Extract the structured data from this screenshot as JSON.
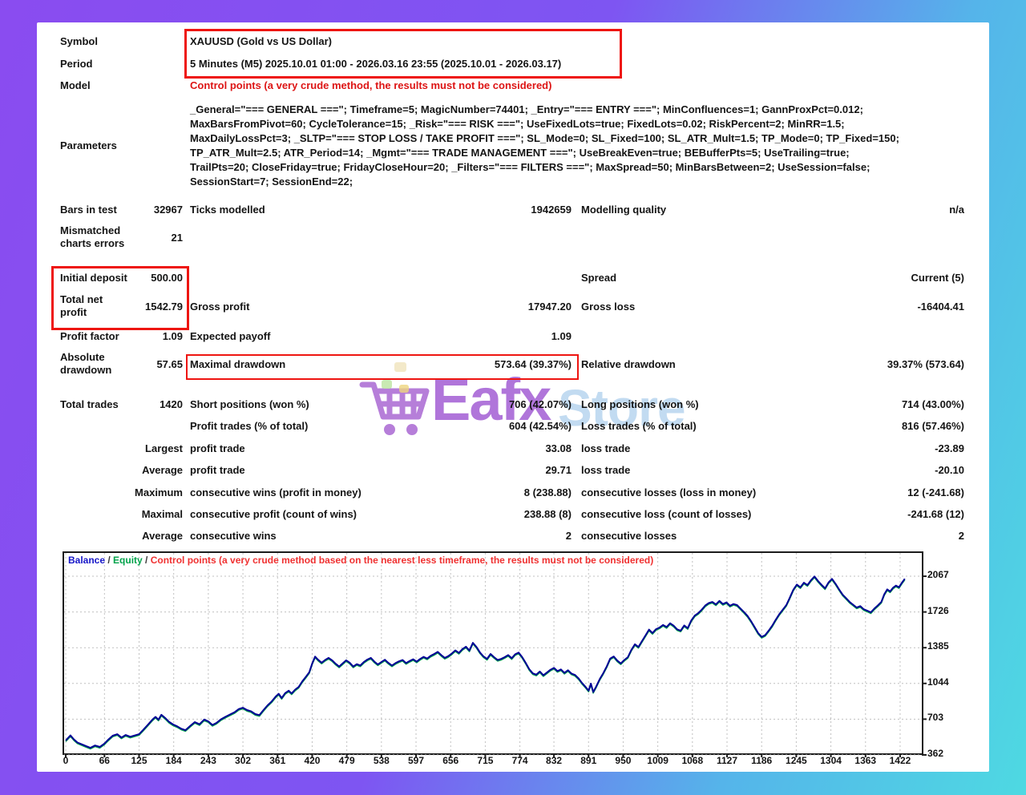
{
  "report": {
    "symbol_label": "Symbol",
    "symbol_value": "XAUUSD (Gold vs US Dollar)",
    "period_label": "Period",
    "period_value": "5 Minutes (M5) 2025.10.01 01:00 - 2026.03.16 23:55 (2025.10.01 - 2026.03.17)",
    "model_label": "Model",
    "model_value": "Control points (a very crude method, the results must not be considered)",
    "parameters_label": "Parameters",
    "parameters_lines": [
      "_General=\"=== GENERAL ===\"; Timeframe=5; MagicNumber=74401; _Entry=\"=== ENTRY ===\"; MinConfluences=1; GannProxPct=0.012;",
      "MaxBarsFromPivot=60; CycleTolerance=15; _Risk=\"=== RISK ===\"; UseFixedLots=true; FixedLots=0.02; RiskPercent=2; MinRR=1.5;",
      "MaxDailyLossPct=3; _SLTP=\"=== STOP LOSS / TAKE PROFIT ===\"; SL_Mode=0; SL_Fixed=100; SL_ATR_Mult=1.5; TP_Mode=0; TP_Fixed=150;",
      "TP_ATR_Mult=2.5; ATR_Period=14; _Mgmt=\"=== TRADE MANAGEMENT ===\"; UseBreakEven=true; BEBufferPts=5; UseTrailing=true;",
      "TrailPts=20; CloseFriday=true; FridayCloseHour=20; _Filters=\"=== FILTERS ===\"; MaxSpread=50; MinBarsBetween=2; UseSession=false;",
      "SessionStart=7; SessionEnd=22;"
    ],
    "bars_in_test_label": "Bars in test",
    "bars_in_test_value": "32967",
    "ticks_modelled_label": "Ticks modelled",
    "ticks_modelled_value": "1942659",
    "modelling_quality_label": "Modelling quality",
    "modelling_quality_value": "n/a",
    "mismatched_label": "Mismatched charts errors",
    "mismatched_value": "21",
    "initial_deposit_label": "Initial deposit",
    "initial_deposit_value": "500.00",
    "spread_label": "Spread",
    "spread_value": "Current (5)",
    "total_net_profit_label": "Total net profit",
    "total_net_profit_value": "1542.79",
    "gross_profit_label": "Gross profit",
    "gross_profit_value": "17947.20",
    "gross_loss_label": "Gross loss",
    "gross_loss_value": "-16404.41",
    "profit_factor_label": "Profit factor",
    "profit_factor_value": "1.09",
    "expected_payoff_label": "Expected payoff",
    "expected_payoff_value": "1.09",
    "absolute_drawdown_label": "Absolute drawdown",
    "absolute_drawdown_value": "57.65",
    "maximal_drawdown_label": "Maximal drawdown",
    "maximal_drawdown_value": "573.64 (39.37%)",
    "relative_drawdown_label": "Relative drawdown",
    "relative_drawdown_value": "39.37% (573.64)",
    "total_trades_label": "Total trades",
    "total_trades_value": "1420",
    "short_positions_label": "Short positions (won %)",
    "short_positions_value": "706 (42.07%)",
    "long_positions_label": "Long positions (won %)",
    "long_positions_value": "714 (43.00%)",
    "profit_trades_label": "Profit trades (% of total)",
    "profit_trades_value": "604 (42.54%)",
    "loss_trades_label": "Loss trades (% of total)",
    "loss_trades_value": "816 (57.46%)",
    "largest_label": "Largest",
    "largest_profit_trade_label": "profit trade",
    "largest_profit_trade_value": "33.08",
    "largest_loss_trade_label": "loss trade",
    "largest_loss_trade_value": "-23.89",
    "average_label": "Average",
    "average_profit_trade_label": "profit trade",
    "average_profit_trade_value": "29.71",
    "average_loss_trade_label": "loss trade",
    "average_loss_trade_value": "-20.10",
    "maximum_label": "Maximum",
    "max_cons_wins_label": "consecutive wins (profit in money)",
    "max_cons_wins_value": "8 (238.88)",
    "max_cons_losses_label": "consecutive losses (loss in money)",
    "max_cons_losses_value": "12 (-241.68)",
    "maximal_label": "Maximal",
    "maximal_cons_profit_label": "consecutive profit (count of wins)",
    "maximal_cons_profit_value": "238.88 (8)",
    "maximal_cons_loss_label": "consecutive loss (count of losses)",
    "maximal_cons_loss_value": "-241.68 (12)",
    "average2_label": "Average",
    "avg_cons_wins_label": "consecutive wins",
    "avg_cons_wins_value": "2",
    "avg_cons_losses_label": "consecutive losses",
    "avg_cons_losses_value": "2"
  },
  "watermark": {
    "brand_part1": "Eafx",
    "brand_part2": "Store",
    "part1_color": "#9b4fd0",
    "part2_color": "#a3c8ea",
    "cart_color": "#a45fd0",
    "item_colors": [
      "#f0e3bc",
      "#bce3a0",
      "#eed47e"
    ]
  },
  "annotation_color": "#ee1511",
  "chart_data": {
    "type": "line",
    "legend": {
      "balance_label": "Balance",
      "separator1": " / ",
      "equity_label": "Equity",
      "separator2": " / ",
      "note": "Control points (a very crude method based on the nearest less timeframe, the results must not be considered)",
      "balance_color": "#1515c8",
      "equity_color": "#00a24a",
      "note_color": "#f03131",
      "separator_color": "#3a3a3a"
    },
    "x_ticks": [
      0,
      66,
      125,
      184,
      243,
      302,
      361,
      420,
      479,
      538,
      597,
      656,
      715,
      774,
      832,
      891,
      950,
      1009,
      1068,
      1127,
      1186,
      1245,
      1304,
      1363,
      1422
    ],
    "y_ticks": [
      362,
      703,
      1044,
      1385,
      1726,
      2067
    ],
    "x_range": [
      0,
      1448
    ],
    "y_view_range": [
      377,
      2289
    ],
    "grid": true,
    "legend_position": "top-left",
    "series": [
      {
        "name": "Balance",
        "color": "#000096",
        "points": [
          [
            0,
            500
          ],
          [
            8,
            548
          ],
          [
            14,
            510
          ],
          [
            20,
            480
          ],
          [
            28,
            462
          ],
          [
            35,
            445
          ],
          [
            42,
            430
          ],
          [
            50,
            452
          ],
          [
            58,
            438
          ],
          [
            66,
            470
          ],
          [
            72,
            505
          ],
          [
            80,
            545
          ],
          [
            88,
            560
          ],
          [
            95,
            528
          ],
          [
            102,
            552
          ],
          [
            110,
            535
          ],
          [
            118,
            548
          ],
          [
            125,
            560
          ],
          [
            132,
            600
          ],
          [
            140,
            650
          ],
          [
            148,
            700
          ],
          [
            153,
            725
          ],
          [
            158,
            698
          ],
          [
            163,
            745
          ],
          [
            170,
            712
          ],
          [
            176,
            678
          ],
          [
            183,
            652
          ],
          [
            190,
            635
          ],
          [
            197,
            612
          ],
          [
            204,
            598
          ],
          [
            212,
            638
          ],
          [
            220,
            675
          ],
          [
            228,
            655
          ],
          [
            236,
            700
          ],
          [
            243,
            682
          ],
          [
            250,
            648
          ],
          [
            257,
            668
          ],
          [
            264,
            700
          ],
          [
            272,
            725
          ],
          [
            280,
            748
          ],
          [
            288,
            770
          ],
          [
            295,
            800
          ],
          [
            302,
            812
          ],
          [
            309,
            790
          ],
          [
            316,
            778
          ],
          [
            323,
            752
          ],
          [
            330,
            742
          ],
          [
            337,
            790
          ],
          [
            344,
            835
          ],
          [
            351,
            872
          ],
          [
            358,
            920
          ],
          [
            363,
            945
          ],
          [
            368,
            905
          ],
          [
            374,
            952
          ],
          [
            380,
            975
          ],
          [
            385,
            948
          ],
          [
            391,
            985
          ],
          [
            397,
            1010
          ],
          [
            403,
            1062
          ],
          [
            409,
            1105
          ],
          [
            415,
            1150
          ],
          [
            420,
            1235
          ],
          [
            425,
            1300
          ],
          [
            430,
            1270
          ],
          [
            436,
            1242
          ],
          [
            442,
            1268
          ],
          [
            448,
            1288
          ],
          [
            454,
            1265
          ],
          [
            460,
            1232
          ],
          [
            466,
            1205
          ],
          [
            472,
            1235
          ],
          [
            478,
            1265
          ],
          [
            484,
            1242
          ],
          [
            490,
            1205
          ],
          [
            496,
            1228
          ],
          [
            502,
            1215
          ],
          [
            508,
            1248
          ],
          [
            514,
            1272
          ],
          [
            520,
            1288
          ],
          [
            526,
            1252
          ],
          [
            532,
            1225
          ],
          [
            538,
            1248
          ],
          [
            544,
            1270
          ],
          [
            550,
            1240
          ],
          [
            556,
            1215
          ],
          [
            562,
            1238
          ],
          [
            568,
            1255
          ],
          [
            574,
            1268
          ],
          [
            580,
            1238
          ],
          [
            586,
            1258
          ],
          [
            592,
            1275
          ],
          [
            598,
            1252
          ],
          [
            604,
            1278
          ],
          [
            610,
            1298
          ],
          [
            616,
            1282
          ],
          [
            622,
            1308
          ],
          [
            628,
            1325
          ],
          [
            634,
            1345
          ],
          [
            640,
            1315
          ],
          [
            646,
            1288
          ],
          [
            652,
            1305
          ],
          [
            658,
            1330
          ],
          [
            664,
            1360
          ],
          [
            670,
            1335
          ],
          [
            676,
            1372
          ],
          [
            682,
            1395
          ],
          [
            688,
            1358
          ],
          [
            694,
            1432
          ],
          [
            700,
            1392
          ],
          [
            706,
            1340
          ],
          [
            712,
            1302
          ],
          [
            718,
            1278
          ],
          [
            724,
            1325
          ],
          [
            730,
            1295
          ],
          [
            736,
            1268
          ],
          [
            742,
            1278
          ],
          [
            748,
            1295
          ],
          [
            754,
            1315
          ],
          [
            760,
            1285
          ],
          [
            766,
            1322
          ],
          [
            772,
            1338
          ],
          [
            778,
            1295
          ],
          [
            784,
            1240
          ],
          [
            790,
            1180
          ],
          [
            796,
            1140
          ],
          [
            802,
            1128
          ],
          [
            808,
            1158
          ],
          [
            814,
            1122
          ],
          [
            820,
            1148
          ],
          [
            826,
            1175
          ],
          [
            832,
            1192
          ],
          [
            838,
            1162
          ],
          [
            844,
            1178
          ],
          [
            850,
            1145
          ],
          [
            856,
            1170
          ],
          [
            862,
            1138
          ],
          [
            868,
            1125
          ],
          [
            874,
            1092
          ],
          [
            880,
            1048
          ],
          [
            886,
            1010
          ],
          [
            891,
            975
          ],
          [
            895,
            1042
          ],
          [
            899,
            962
          ],
          [
            904,
            1015
          ],
          [
            910,
            1085
          ],
          [
            916,
            1142
          ],
          [
            922,
            1205
          ],
          [
            928,
            1282
          ],
          [
            934,
            1302
          ],
          [
            940,
            1262
          ],
          [
            946,
            1235
          ],
          [
            952,
            1268
          ],
          [
            958,
            1295
          ],
          [
            964,
            1365
          ],
          [
            970,
            1418
          ],
          [
            976,
            1392
          ],
          [
            982,
            1448
          ],
          [
            988,
            1502
          ],
          [
            994,
            1558
          ],
          [
            1000,
            1525
          ],
          [
            1006,
            1562
          ],
          [
            1012,
            1578
          ],
          [
            1018,
            1602
          ],
          [
            1024,
            1582
          ],
          [
            1030,
            1618
          ],
          [
            1036,
            1595
          ],
          [
            1042,
            1560
          ],
          [
            1048,
            1548
          ],
          [
            1054,
            1598
          ],
          [
            1060,
            1572
          ],
          [
            1066,
            1645
          ],
          [
            1072,
            1692
          ],
          [
            1078,
            1715
          ],
          [
            1084,
            1748
          ],
          [
            1090,
            1788
          ],
          [
            1096,
            1812
          ],
          [
            1102,
            1822
          ],
          [
            1108,
            1798
          ],
          [
            1114,
            1832
          ],
          [
            1120,
            1802
          ],
          [
            1126,
            1818
          ],
          [
            1132,
            1785
          ],
          [
            1138,
            1802
          ],
          [
            1144,
            1792
          ],
          [
            1150,
            1758
          ],
          [
            1156,
            1725
          ],
          [
            1162,
            1688
          ],
          [
            1168,
            1638
          ],
          [
            1174,
            1582
          ],
          [
            1180,
            1525
          ],
          [
            1186,
            1488
          ],
          [
            1192,
            1505
          ],
          [
            1198,
            1548
          ],
          [
            1204,
            1595
          ],
          [
            1210,
            1652
          ],
          [
            1216,
            1705
          ],
          [
            1222,
            1748
          ],
          [
            1228,
            1792
          ],
          [
            1234,
            1862
          ],
          [
            1240,
            1938
          ],
          [
            1246,
            1988
          ],
          [
            1252,
            1962
          ],
          [
            1258,
            2005
          ],
          [
            1264,
            1982
          ],
          [
            1270,
            2028
          ],
          [
            1276,
            2065
          ],
          [
            1282,
            2022
          ],
          [
            1288,
            1985
          ],
          [
            1294,
            1952
          ],
          [
            1300,
            2008
          ],
          [
            1306,
            2042
          ],
          [
            1312,
            1995
          ],
          [
            1318,
            1942
          ],
          [
            1324,
            1892
          ],
          [
            1330,
            1858
          ],
          [
            1336,
            1822
          ],
          [
            1342,
            1795
          ],
          [
            1348,
            1768
          ],
          [
            1354,
            1782
          ],
          [
            1360,
            1752
          ],
          [
            1366,
            1738
          ],
          [
            1372,
            1722
          ],
          [
            1378,
            1758
          ],
          [
            1384,
            1788
          ],
          [
            1390,
            1822
          ],
          [
            1395,
            1895
          ],
          [
            1400,
            1942
          ],
          [
            1405,
            1922
          ],
          [
            1410,
            1958
          ],
          [
            1415,
            1978
          ],
          [
            1420,
            1962
          ],
          [
            1425,
            2005
          ],
          [
            1430,
            2043
          ]
        ]
      },
      {
        "name": "Equity",
        "color": "#00a24a",
        "offset_from_balance": -10
      }
    ]
  }
}
